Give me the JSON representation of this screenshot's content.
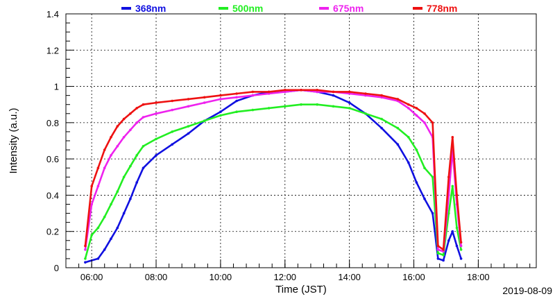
{
  "chart_data": {
    "type": "line",
    "title": "",
    "xlabel": "Time (JST)",
    "ylabel": "Intensity (a.u.)",
    "date_label": "2019-08-09",
    "x_ticks": [
      "06:00",
      "08:00",
      "10:00",
      "12:00",
      "14:00",
      "16:00",
      "18:00"
    ],
    "y_ticks": [
      "0",
      "0.2",
      "0.4",
      "0.6",
      "0.8",
      "1",
      "1.2",
      "1.4"
    ],
    "xlim": [
      "05:12",
      "19:48"
    ],
    "ylim": [
      0,
      1.4
    ],
    "grid": true,
    "legend_position": "top",
    "series": [
      {
        "name": "368nm",
        "color": "#1010e0",
        "points": [
          [
            "05:48",
            0.03
          ],
          [
            "06:12",
            0.05
          ],
          [
            "06:24",
            0.1
          ],
          [
            "06:36",
            0.16
          ],
          [
            "06:48",
            0.22
          ],
          [
            "07:00",
            0.3
          ],
          [
            "07:12",
            0.38
          ],
          [
            "07:24",
            0.47
          ],
          [
            "07:36",
            0.55
          ],
          [
            "08:00",
            0.62
          ],
          [
            "08:30",
            0.68
          ],
          [
            "09:00",
            0.74
          ],
          [
            "09:30",
            0.81
          ],
          [
            "10:00",
            0.86
          ],
          [
            "10:30",
            0.92
          ],
          [
            "11:00",
            0.95
          ],
          [
            "11:30",
            0.97
          ],
          [
            "12:00",
            0.97
          ],
          [
            "12:30",
            0.98
          ],
          [
            "13:00",
            0.97
          ],
          [
            "13:30",
            0.95
          ],
          [
            "14:00",
            0.91
          ],
          [
            "14:30",
            0.85
          ],
          [
            "15:00",
            0.77
          ],
          [
            "15:30",
            0.68
          ],
          [
            "15:50",
            0.58
          ],
          [
            "16:05",
            0.47
          ],
          [
            "16:20",
            0.38
          ],
          [
            "16:35",
            0.3
          ],
          [
            "16:45",
            0.05
          ],
          [
            "16:55",
            0.04
          ],
          [
            "17:05",
            0.15
          ],
          [
            "17:12",
            0.2
          ],
          [
            "17:20",
            0.12
          ],
          [
            "17:28",
            0.05
          ]
        ]
      },
      {
        "name": "500nm",
        "color": "#22ee22",
        "points": [
          [
            "05:48",
            0.05
          ],
          [
            "06:00",
            0.18
          ],
          [
            "06:12",
            0.22
          ],
          [
            "06:24",
            0.28
          ],
          [
            "06:36",
            0.35
          ],
          [
            "06:48",
            0.42
          ],
          [
            "07:00",
            0.5
          ],
          [
            "07:12",
            0.56
          ],
          [
            "07:24",
            0.62
          ],
          [
            "07:36",
            0.67
          ],
          [
            "08:00",
            0.71
          ],
          [
            "08:30",
            0.75
          ],
          [
            "09:00",
            0.78
          ],
          [
            "09:30",
            0.81
          ],
          [
            "10:00",
            0.84
          ],
          [
            "10:30",
            0.86
          ],
          [
            "11:00",
            0.87
          ],
          [
            "11:30",
            0.88
          ],
          [
            "12:00",
            0.89
          ],
          [
            "12:30",
            0.9
          ],
          [
            "13:00",
            0.9
          ],
          [
            "13:30",
            0.89
          ],
          [
            "14:00",
            0.88
          ],
          [
            "14:30",
            0.85
          ],
          [
            "15:00",
            0.82
          ],
          [
            "15:30",
            0.77
          ],
          [
            "15:50",
            0.72
          ],
          [
            "16:05",
            0.65
          ],
          [
            "16:20",
            0.55
          ],
          [
            "16:35",
            0.5
          ],
          [
            "16:45",
            0.08
          ],
          [
            "16:55",
            0.07
          ],
          [
            "17:05",
            0.3
          ],
          [
            "17:12",
            0.45
          ],
          [
            "17:20",
            0.22
          ],
          [
            "17:28",
            0.1
          ]
        ]
      },
      {
        "name": "675nm",
        "color": "#ee22ee",
        "points": [
          [
            "05:48",
            0.1
          ],
          [
            "06:00",
            0.35
          ],
          [
            "06:12",
            0.45
          ],
          [
            "06:24",
            0.55
          ],
          [
            "06:36",
            0.62
          ],
          [
            "06:48",
            0.67
          ],
          [
            "07:00",
            0.72
          ],
          [
            "07:12",
            0.76
          ],
          [
            "07:24",
            0.8
          ],
          [
            "07:36",
            0.83
          ],
          [
            "08:00",
            0.85
          ],
          [
            "08:30",
            0.87
          ],
          [
            "09:00",
            0.89
          ],
          [
            "09:30",
            0.91
          ],
          [
            "10:00",
            0.93
          ],
          [
            "10:30",
            0.94
          ],
          [
            "11:00",
            0.95
          ],
          [
            "11:30",
            0.96
          ],
          [
            "12:00",
            0.97
          ],
          [
            "12:30",
            0.98
          ],
          [
            "13:00",
            0.97
          ],
          [
            "13:30",
            0.97
          ],
          [
            "14:00",
            0.96
          ],
          [
            "14:30",
            0.95
          ],
          [
            "15:00",
            0.94
          ],
          [
            "15:30",
            0.92
          ],
          [
            "15:50",
            0.88
          ],
          [
            "16:05",
            0.84
          ],
          [
            "16:20",
            0.8
          ],
          [
            "16:35",
            0.72
          ],
          [
            "16:45",
            0.1
          ],
          [
            "16:55",
            0.09
          ],
          [
            "17:05",
            0.4
          ],
          [
            "17:12",
            0.65
          ],
          [
            "17:20",
            0.35
          ],
          [
            "17:28",
            0.12
          ]
        ]
      },
      {
        "name": "778nm",
        "color": "#ee1111",
        "points": [
          [
            "05:48",
            0.12
          ],
          [
            "06:00",
            0.45
          ],
          [
            "06:12",
            0.55
          ],
          [
            "06:24",
            0.65
          ],
          [
            "06:36",
            0.72
          ],
          [
            "06:48",
            0.78
          ],
          [
            "07:00",
            0.82
          ],
          [
            "07:12",
            0.85
          ],
          [
            "07:24",
            0.88
          ],
          [
            "07:36",
            0.9
          ],
          [
            "08:00",
            0.91
          ],
          [
            "08:30",
            0.92
          ],
          [
            "09:00",
            0.93
          ],
          [
            "09:30",
            0.94
          ],
          [
            "10:00",
            0.95
          ],
          [
            "10:30",
            0.96
          ],
          [
            "11:00",
            0.97
          ],
          [
            "11:30",
            0.97
          ],
          [
            "12:00",
            0.98
          ],
          [
            "12:30",
            0.98
          ],
          [
            "13:00",
            0.98
          ],
          [
            "13:30",
            0.97
          ],
          [
            "14:00",
            0.97
          ],
          [
            "14:30",
            0.96
          ],
          [
            "15:00",
            0.95
          ],
          [
            "15:30",
            0.93
          ],
          [
            "15:50",
            0.9
          ],
          [
            "16:05",
            0.88
          ],
          [
            "16:20",
            0.85
          ],
          [
            "16:35",
            0.8
          ],
          [
            "16:45",
            0.12
          ],
          [
            "16:55",
            0.1
          ],
          [
            "17:05",
            0.5
          ],
          [
            "17:12",
            0.72
          ],
          [
            "17:20",
            0.4
          ],
          [
            "17:28",
            0.14
          ]
        ]
      }
    ]
  }
}
